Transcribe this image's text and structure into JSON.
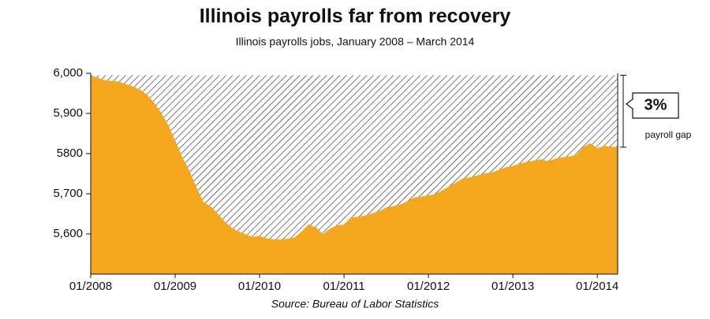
{
  "chart_data": {
    "type": "area",
    "title": "Illinois payrolls far from recovery",
    "subtitle": "Illinois payrolls jobs, January 2008 – March 2014",
    "source": "Source: Bureau of Labor Statistics",
    "annotation": {
      "value_label": "3%",
      "text": "payroll gap"
    },
    "color": "#f5a81e",
    "gap_reference": 5995,
    "x": [
      "01/2008",
      "02/2008",
      "03/2008",
      "04/2008",
      "05/2008",
      "06/2008",
      "07/2008",
      "08/2008",
      "09/2008",
      "10/2008",
      "11/2008",
      "12/2008",
      "01/2009",
      "02/2009",
      "03/2009",
      "04/2009",
      "05/2009",
      "06/2009",
      "07/2009",
      "08/2009",
      "09/2009",
      "10/2009",
      "11/2009",
      "12/2009",
      "01/2010",
      "02/2010",
      "03/2010",
      "04/2010",
      "05/2010",
      "06/2010",
      "07/2010",
      "08/2010",
      "09/2010",
      "10/2010",
      "11/2010",
      "12/2010",
      "01/2011",
      "02/2011",
      "03/2011",
      "04/2011",
      "05/2011",
      "06/2011",
      "07/2011",
      "08/2011",
      "09/2011",
      "10/2011",
      "11/2011",
      "12/2011",
      "01/2012",
      "02/2012",
      "03/2012",
      "04/2012",
      "05/2012",
      "06/2012",
      "07/2012",
      "08/2012",
      "09/2012",
      "10/2012",
      "11/2012",
      "12/2012",
      "01/2013",
      "02/2013",
      "03/2013",
      "04/2013",
      "05/2013",
      "06/2013",
      "07/2013",
      "08/2013",
      "09/2013",
      "10/2013",
      "11/2013",
      "12/2013",
      "01/2014",
      "02/2014",
      "03/2014"
    ],
    "values": [
      5993,
      5988,
      5982,
      5980,
      5978,
      5972,
      5966,
      5958,
      5945,
      5925,
      5900,
      5870,
      5830,
      5790,
      5755,
      5715,
      5678,
      5668,
      5650,
      5630,
      5615,
      5605,
      5598,
      5592,
      5594,
      5588,
      5585,
      5586,
      5587,
      5590,
      5605,
      5623,
      5615,
      5598,
      5612,
      5620,
      5622,
      5640,
      5642,
      5645,
      5650,
      5655,
      5665,
      5668,
      5672,
      5680,
      5690,
      5692,
      5695,
      5698,
      5708,
      5718,
      5728,
      5738,
      5740,
      5745,
      5750,
      5752,
      5758,
      5765,
      5768,
      5775,
      5778,
      5782,
      5785,
      5780,
      5786,
      5790,
      5792,
      5795,
      5815,
      5825,
      5812,
      5818,
      5816
    ],
    "xticks": [
      "01/2008",
      "01/2009",
      "01/2010",
      "01/2011",
      "01/2012",
      "01/2013",
      "01/2014"
    ],
    "ylim": [
      5500,
      6000
    ],
    "yticks": [
      {
        "value": 6000,
        "label": "6,000"
      },
      {
        "value": 5900,
        "label": "5,900"
      },
      5800,
      {
        "value": 5700,
        "label": "5,700"
      },
      {
        "value": 5600,
        "label": "5,600"
      }
    ]
  }
}
